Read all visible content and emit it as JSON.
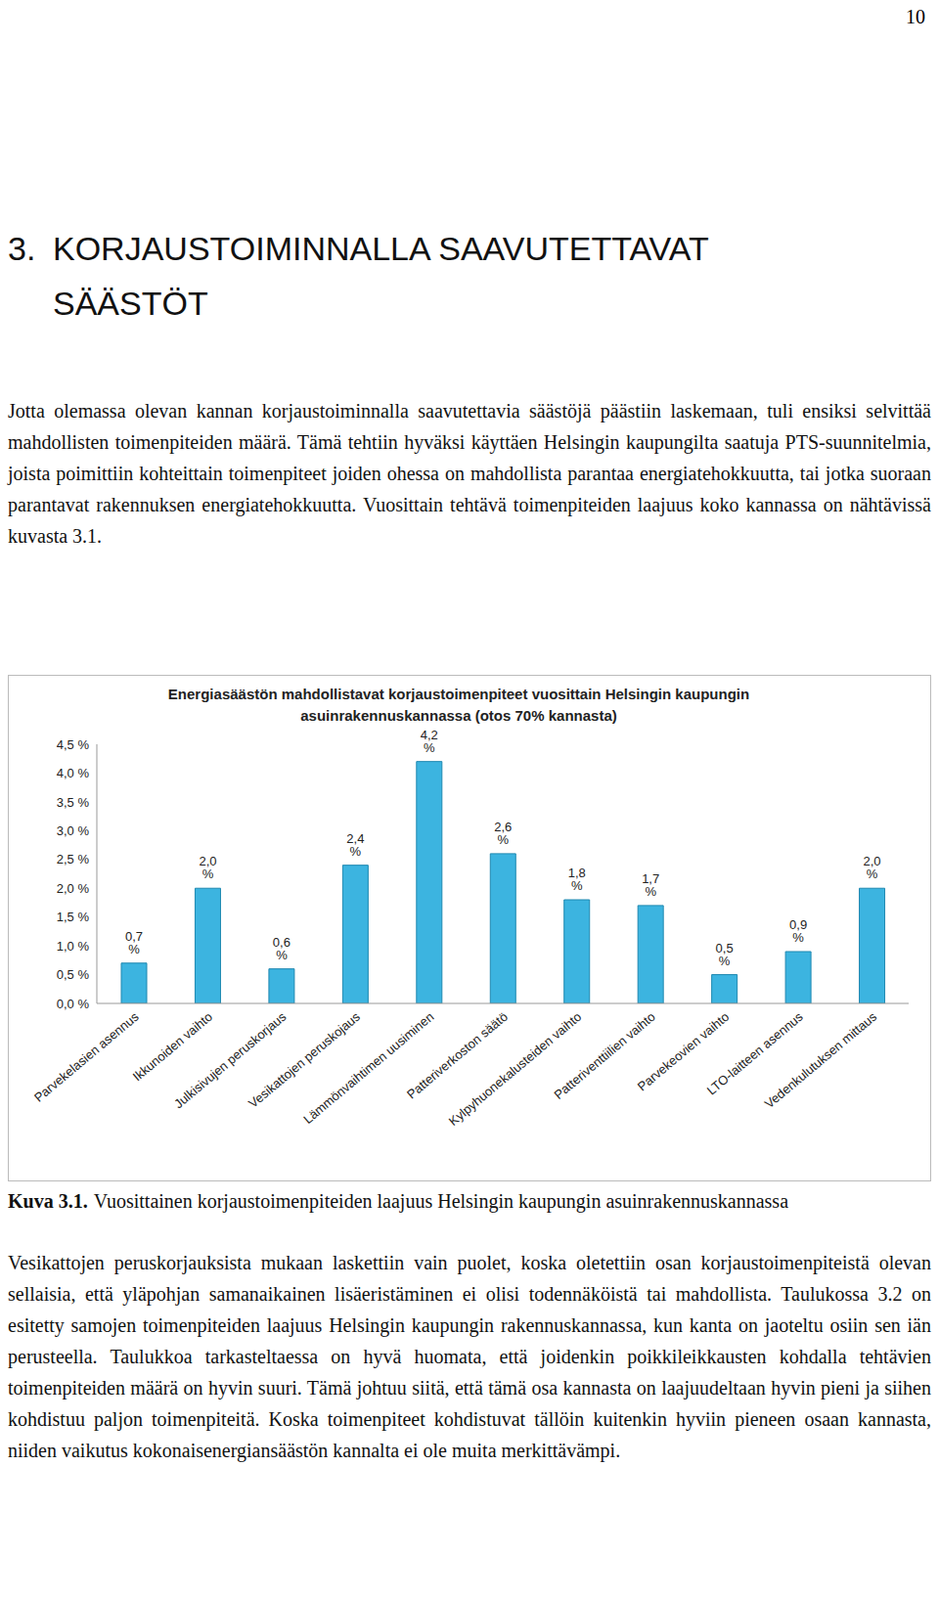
{
  "page_number": "10",
  "heading": {
    "number": "3.",
    "title": "KORJAUSTOIMINNALLA SAAVUTETTAVAT SÄÄSTÖT"
  },
  "paragraphs": [
    "Jotta olemassa olevan kannan korjaustoiminnalla saavutettavia säästöjä päästiin laskemaan, tuli ensiksi selvittää mahdollisten toimenpiteiden määrä. Tämä tehtiin hyväksi käyttäen Helsingin kaupungilta saatuja PTS-suunnitelmia, joista poimittiin kohteittain toimenpiteet joiden ohessa on mahdollista parantaa energiatehokkuutta, tai jotka suoraan parantavat rakennuksen energiatehokkuutta. Vuosittain tehtävä toimenpiteiden laajuus koko kannassa on nähtävissä kuvasta 3.1."
  ],
  "chart_data": {
    "type": "bar",
    "title": "Energiasäästön mahdollistavat korjaustoimenpiteet vuosittain Helsingin kaupungin asuinrakennuskannassa (otos 70% kannasta)",
    "categories": [
      "Parvekelasien asennus",
      "Ikkunoiden vaihto",
      "Julkisivujen peruskorjaus",
      "Vesikattojen peruskojaus",
      "Lämmönvaihtimen uusiminen",
      "Patteriverkoston säätö",
      "Kylpyhuonekalusteiden vaihto",
      "Patteriventtiilien vaihto",
      "Parvekeovien vaihto",
      "LTO-laitteen asennus",
      "Vedenkulutuksen mittaus"
    ],
    "values": [
      0.7,
      2.0,
      0.6,
      2.4,
      4.2,
      2.6,
      1.8,
      1.7,
      0.5,
      0.9,
      2.0
    ],
    "value_labels": [
      "0,7 %",
      "2,0 %",
      "0,6 %",
      "2,4 %",
      "4,2 %",
      "2,6 %",
      "1,8 %",
      "1,7 %",
      "0,5 %",
      "0,9 %",
      "2,0 %"
    ],
    "data_labels": true,
    "color": "#3cb4e0",
    "ylim": [
      0,
      4.5
    ],
    "yticks": [
      {
        "value": 0,
        "label": "0,0 %"
      },
      {
        "value": 0.5,
        "label": "0,5 %"
      },
      {
        "value": 1.0,
        "label": "1,0 %"
      },
      {
        "value": 1.5,
        "label": "1,5 %"
      },
      {
        "value": 2.0,
        "label": "2,0 %"
      },
      {
        "value": 2.5,
        "label": "2,5 %"
      },
      {
        "value": 3.0,
        "label": "3,0 %"
      },
      {
        "value": 3.5,
        "label": "3,5 %"
      },
      {
        "value": 4.0,
        "label": "4,0 %"
      },
      {
        "value": 4.5,
        "label": "4,5 %"
      }
    ],
    "grid": false
  },
  "caption": {
    "label": "Kuva 3.1.",
    "text": "Vuosittainen korjaustoimenpiteiden laajuus Helsingin kaupungin asuinrakennuskannassa"
  },
  "paragraphs_after": [
    "Vesikattojen peruskorjauksista mukaan laskettiin vain puolet, koska oletettiin osan korjaustoimenpiteistä olevan sellaisia, että yläpohjan samanaikainen lisäeristäminen ei olisi todennäköistä tai mahdollista. Taulukossa 3.2 on esitetty samojen toimenpiteiden laajuus Helsingin kaupungin rakennuskannassa, kun kanta on jaoteltu osiin sen iän perusteella. Taulukkoa tarkasteltaessa on hyvä huomata, että joidenkin poikkileikkausten kohdalla tehtävien toimenpiteiden määrä on hyvin suuri. Tämä johtuu siitä, että tämä osa kannasta on laajuudeltaan hyvin pieni ja siihen kohdistuu paljon toimenpiteitä. Koska toimenpiteet kohdistuvat tällöin kuitenkin hyviin pieneen osaan kannasta, niiden vaikutus kokonaisenergiansäästön kannalta ei ole muita merkittävämpi."
  ]
}
